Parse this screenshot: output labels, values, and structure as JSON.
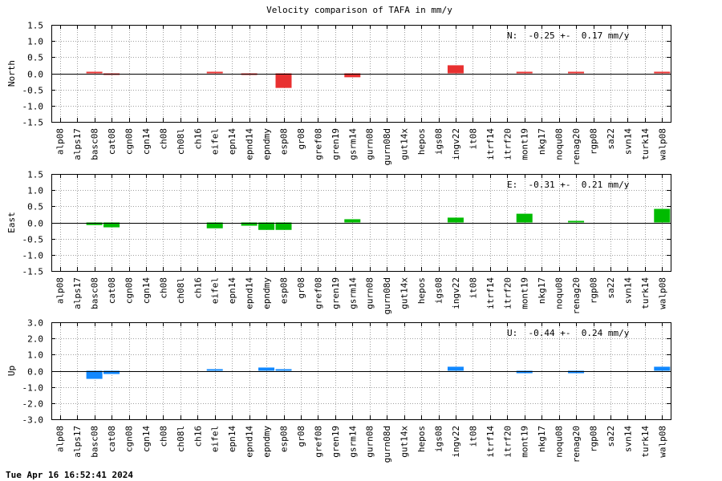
{
  "chart_data": {
    "type": "bar",
    "title": "Velocity comparison of TAFA in mm/y",
    "categories": [
      "alp08",
      "alps17",
      "basc08",
      "cat08",
      "cgn08",
      "cgn14",
      "ch08",
      "ch08l",
      "ch16",
      "eifel",
      "epn14",
      "epnd14",
      "epndmy",
      "esp08",
      "gr08",
      "gref08",
      "gren19",
      "gsrm14",
      "gurn08",
      "gurn08d",
      "gut14x",
      "hepos",
      "igs08",
      "ingv22",
      "it08",
      "itrf14",
      "itrf20",
      "mont19",
      "nkg17",
      "noqu08",
      "renag20",
      "rgp08",
      "sa22",
      "svn14",
      "turk14",
      "walp08"
    ],
    "grid": true,
    "panels": [
      {
        "ylabel": "North",
        "ylim": [
          -1.5,
          1.5
        ],
        "yticks": [
          "1.5",
          "1.0",
          "0.5",
          "0.0",
          "-0.5",
          "-1.0",
          "-1.5"
        ],
        "ytick_values": [
          1.5,
          1.0,
          0.5,
          0.0,
          -0.5,
          -1.0,
          -1.5
        ],
        "color": "#e83030",
        "annotation": "N:  -0.25 +-  0.17 mm/y",
        "values": [
          null,
          null,
          0.02,
          -0.02,
          null,
          null,
          null,
          null,
          null,
          0.02,
          null,
          -0.05,
          null,
          -0.45,
          null,
          null,
          null,
          -0.12,
          null,
          null,
          null,
          null,
          null,
          0.25,
          null,
          null,
          null,
          0.04,
          null,
          null,
          0.04,
          null,
          null,
          null,
          null,
          0.05
        ]
      },
      {
        "ylabel": "East",
        "ylim": [
          -1.5,
          1.5
        ],
        "yticks": [
          "1.5",
          "1.0",
          "0.5",
          "0.0",
          "-0.5",
          "-1.0",
          "-1.5"
        ],
        "ytick_values": [
          1.5,
          1.0,
          0.5,
          0.0,
          -0.5,
          -1.0,
          -1.5
        ],
        "color": "#00bb00",
        "annotation": "E:  -0.31 +-  0.21 mm/y",
        "values": [
          null,
          null,
          -0.08,
          -0.15,
          null,
          null,
          null,
          null,
          null,
          -0.18,
          null,
          -0.1,
          -0.23,
          -0.23,
          null,
          null,
          null,
          0.1,
          null,
          null,
          null,
          null,
          null,
          0.15,
          null,
          null,
          null,
          0.27,
          null,
          null,
          0.02,
          null,
          null,
          null,
          null,
          0.42
        ]
      },
      {
        "ylabel": "Up",
        "ylim": [
          -3.0,
          3.0
        ],
        "yticks": [
          "3.0",
          "2.0",
          "1.0",
          "0.0",
          "-1.0",
          "-2.0",
          "-3.0"
        ],
        "ytick_values": [
          3.0,
          2.0,
          1.0,
          0.0,
          -1.0,
          -2.0,
          -3.0
        ],
        "color": "#1188ff",
        "annotation": "U:  -0.44 +-  0.24 mm/y",
        "values": [
          null,
          null,
          -0.5,
          -0.2,
          null,
          null,
          null,
          null,
          null,
          0.1,
          null,
          null,
          0.2,
          0.05,
          null,
          null,
          null,
          null,
          null,
          null,
          null,
          null,
          null,
          0.25,
          null,
          null,
          null,
          -0.15,
          null,
          null,
          -0.15,
          null,
          null,
          null,
          null,
          0.25
        ]
      }
    ]
  },
  "footer": {
    "timestamp": "Tue Apr 16 16:52:41 2024"
  }
}
